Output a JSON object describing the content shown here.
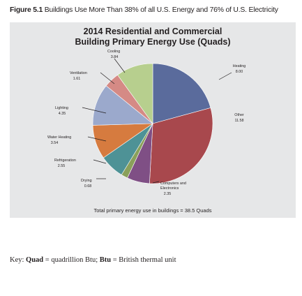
{
  "figure": {
    "number_label": "Figure 5.1",
    "caption": "Buildings Use More Than 38% of all U.S. Energy and 76% of U.S. Electricity"
  },
  "colors": {
    "background": "#e6e7e8",
    "cooling": "#b7cf8e",
    "heating": "#5a6b9c",
    "other": "#a8484d",
    "computers_and_electronics": "#7f4f85",
    "drying": "#8aa05a",
    "refrigeration": "#4e9296",
    "water_heating": "#d67b3f",
    "lighting": "#9ba9cc",
    "ventilation": "#d58a85"
  },
  "footnote": "Total primary energy use in buildings = 38.5 Quads",
  "key": {
    "label": "Key:",
    "quad_term": "Quad",
    "quad_def": "= quadrillion Btu;",
    "btu_term": "Btu",
    "btu_def": "= British thermal unit"
  },
  "chart_data": {
    "type": "pie",
    "title": "2014 Residential and Commercial Building Primary Energy Use (Quads)",
    "title_lines": [
      "2014 Residential and Commercial",
      "Building Primary Energy Use (Quads)"
    ],
    "unit": "Quads",
    "total_label": "Total primary energy use in buildings = 38.5 Quads",
    "slices": [
      {
        "key": "heating",
        "label": "Heating",
        "value": 8.0,
        "value_label": "8.00"
      },
      {
        "key": "other",
        "label": "Other",
        "value": 11.58,
        "value_label": "11.58"
      },
      {
        "key": "computers_and_electronics",
        "label_lines": [
          "Computers and",
          "Electronics"
        ],
        "label": "Computers and Electronics",
        "value": 2.35,
        "value_label": "2.35"
      },
      {
        "key": "drying",
        "label": "Drying",
        "value": 0.68,
        "value_label": "0.68"
      },
      {
        "key": "refrigeration",
        "label": "Refrigeration",
        "value": 2.55,
        "value_label": "2.55"
      },
      {
        "key": "water_heating",
        "label": "Water Heating",
        "value": 3.54,
        "value_label": "3.54"
      },
      {
        "key": "lighting",
        "label": "Lighting",
        "value": 4.35,
        "value_label": "4.35"
      },
      {
        "key": "ventilation",
        "label": "Ventilation",
        "value": 1.61,
        "value_label": "1.61"
      },
      {
        "key": "cooling",
        "label": "Cooling",
        "value": 3.84,
        "value_label": "3.84"
      }
    ]
  }
}
